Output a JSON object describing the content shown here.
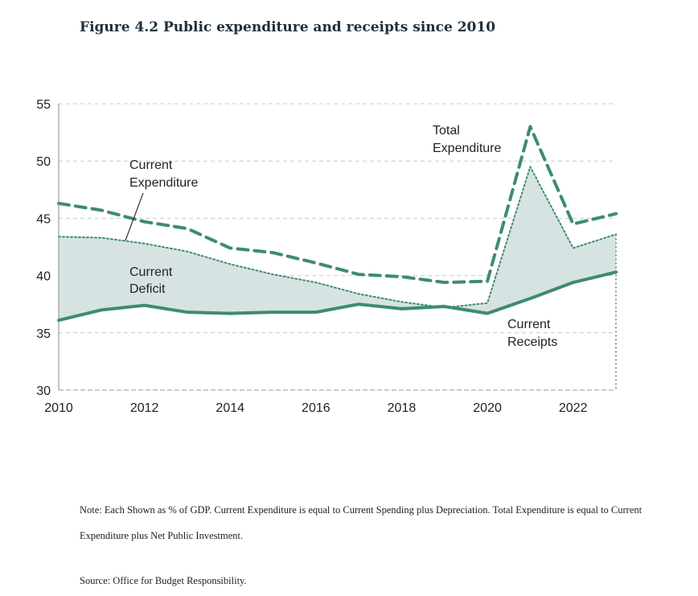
{
  "figure": {
    "title": "Figure 4.2 Public expenditure and receipts since 2010"
  },
  "chart_data": {
    "type": "line",
    "x": [
      2010,
      2011,
      2012,
      2013,
      2014,
      2015,
      2016,
      2017,
      2018,
      2019,
      2020,
      2021,
      2022,
      2023
    ],
    "xticks": [
      "2010",
      "2012",
      "2014",
      "2016",
      "2018",
      "2020",
      "2022"
    ],
    "yticks": [
      "30",
      "35",
      "40",
      "45",
      "50",
      "55"
    ],
    "xlim": [
      2010,
      2023
    ],
    "ylim": [
      30,
      55
    ],
    "grid": true,
    "series": [
      {
        "name": "Total Expenditure",
        "style": "dashed",
        "color": "#3d8c6e",
        "values": [
          46.3,
          45.7,
          44.7,
          44.1,
          42.4,
          42.0,
          41.1,
          40.1,
          39.9,
          39.4,
          39.5,
          53.0,
          44.5,
          45.4
        ]
      },
      {
        "name": "Current Expenditure",
        "style": "dotted",
        "color": "#3d8c6e",
        "values": [
          43.4,
          43.3,
          42.8,
          42.1,
          41.0,
          40.1,
          39.4,
          38.4,
          37.7,
          37.2,
          37.6,
          49.5,
          42.4,
          43.6
        ]
      },
      {
        "name": "Current Receipts",
        "style": "solid",
        "color": "#3d8c6e",
        "values": [
          36.1,
          37.0,
          37.4,
          36.8,
          36.7,
          36.8,
          36.8,
          37.5,
          37.1,
          37.3,
          36.7,
          38.0,
          39.4,
          40.3
        ]
      }
    ],
    "shaded_area": {
      "name": "Current Deficit",
      "between": [
        "Current Expenditure",
        "Current Receipts"
      ],
      "color": "#d7e3e2"
    },
    "annotations": {
      "total_expenditure": [
        "Total",
        "Expenditure"
      ],
      "current_expenditure": [
        "Current",
        "Expenditure"
      ],
      "current_deficit": [
        "Current",
        "Deficit"
      ],
      "current_receipts": [
        "Current",
        "Receipts"
      ]
    }
  },
  "note": "Note: Each Shown as % of GDP. Current Expenditure is equal to Current Spending plus Depreciation. Total Expenditure is equal to Current Expenditure plus Net Public Investment.",
  "source": "Source: Office for Budget Responsibility."
}
